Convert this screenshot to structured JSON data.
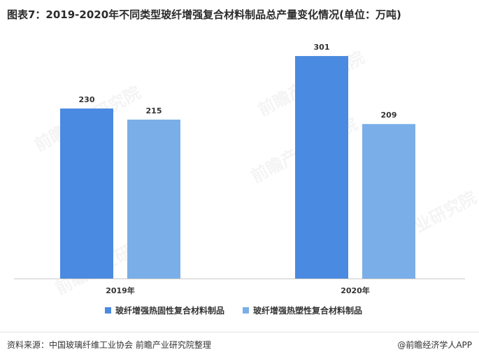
{
  "title": "图表7：2019-2020年不同类型玻纤增强复合材料制品总产量变化情况(单位：万吨)",
  "watermark": "前瞻产业研究院",
  "chart_data": {
    "type": "bar",
    "categories": [
      "2019年",
      "2020年"
    ],
    "series": [
      {
        "name": "玻纤增强热固性复合材料制品",
        "values": [
          230,
          301
        ],
        "color": "#4a8ae0"
      },
      {
        "name": "玻纤增强热塑性复合材料制品",
        "values": [
          215,
          209
        ],
        "color": "#7aaee8"
      }
    ],
    "ylim": [
      0,
      320
    ],
    "grid": false,
    "legend": "bottom"
  },
  "footer": {
    "source": "资料来源：中国玻璃纤维工业协会 前瞻产业研究院整理",
    "credit": "@前瞻经济学人APP"
  }
}
